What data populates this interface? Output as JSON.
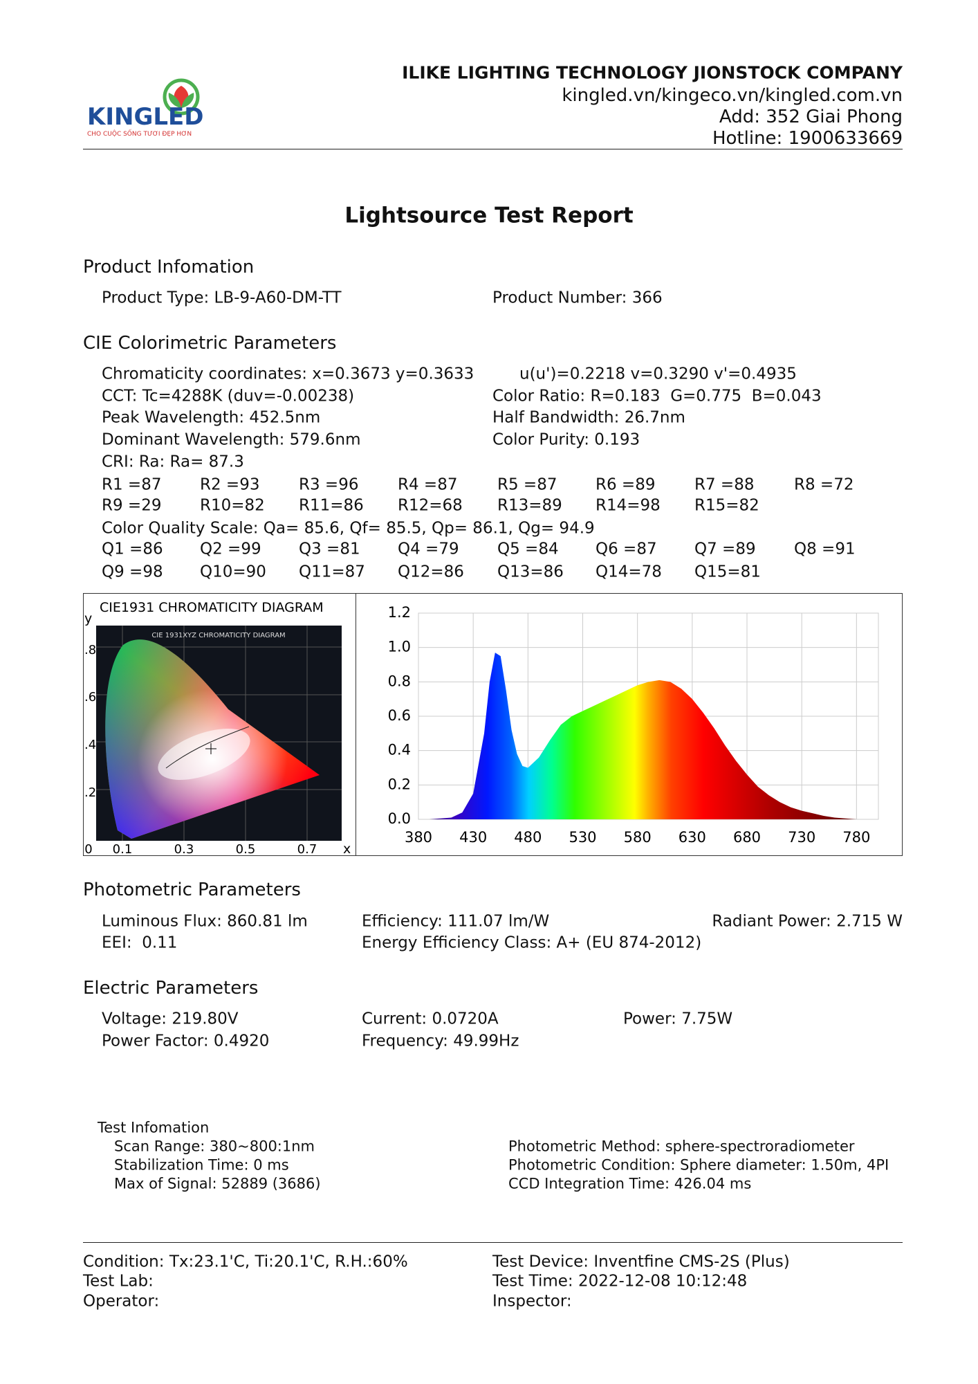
{
  "header": {
    "logo": "KINGLED",
    "slogan": "CHO CUỘC SỐNG TƯƠI ĐẸP HƠN",
    "company": "ILIKE LIGHTING TECHNOLOGY JIONSTOCK COMPANY",
    "website": "kingled.vn/kingeco.vn/kingled.com.vn",
    "address": "Add: 352 Giai Phong",
    "hotline": "Hotline: 1900633669"
  },
  "title": "Lightsource Test Report",
  "product": {
    "heading": "Product Infomation",
    "type": "Product Type: LB-9-A60-DM-TT",
    "number": "Product Number: 366"
  },
  "cie": {
    "heading": "CIE Colorimetric Parameters",
    "chromaticity": "Chromaticity coordinates: x=0.3673 y=0.3633",
    "uv": "u(u')=0.2218 v=0.3290 v'=0.4935",
    "cct": "CCT: Tc=4288K (duv=-0.00238)",
    "color_ratio": "Color Ratio: R=0.183  G=0.775  B=0.043",
    "peak": "Peak Wavelength: 452.5nm",
    "half_bandwidth": "Half Bandwidth: 26.7nm",
    "dominant": "Dominant Wavelength: 579.6nm",
    "purity": "Color Purity: 0.193",
    "cri": "CRI: Ra: Ra= 87.3",
    "r_values": [
      [
        "R1 =87",
        "R2 =93",
        "R3 =96",
        "R4 =87",
        "R5 =87",
        "R6 =89",
        "R7 =88",
        "R8 =72"
      ],
      [
        "R9 =29",
        "R10=82",
        "R11=86",
        "R12=68",
        "R13=89",
        "R14=98",
        "R15=82"
      ]
    ],
    "cqs": "Color Quality Scale: Qa= 85.6, Qf= 85.5, Qp= 86.1, Qg= 94.9",
    "q_values": [
      [
        "Q1 =86",
        "Q2 =99",
        "Q3 =81",
        "Q4 =79",
        "Q5 =84",
        "Q6 =87",
        "Q7 =89",
        "Q8 =91"
      ],
      [
        "Q9 =98",
        "Q10=90",
        "Q11=87",
        "Q12=86",
        "Q13=86",
        "Q14=78",
        "Q15=81"
      ]
    ]
  },
  "cie_diagram": {
    "title": "CIE1931 CHROMATICITY DIAGRAM",
    "inner_title": "CIE 1931XYZ CHROMATICITY DIAGRAM",
    "y_label": "y",
    "x_label": "x",
    "yticks": [
      ".8",
      ".6",
      ".4",
      ".2"
    ],
    "xticks": [
      "0",
      "0.1",
      "0.3",
      "0.5",
      "0.7"
    ]
  },
  "chart_data": {
    "type": "area",
    "x": [
      380,
      390,
      400,
      410,
      420,
      430,
      440,
      445,
      450,
      455,
      460,
      465,
      470,
      475,
      480,
      490,
      500,
      510,
      520,
      530,
      540,
      550,
      560,
      570,
      580,
      590,
      600,
      610,
      620,
      630,
      640,
      650,
      660,
      670,
      680,
      690,
      700,
      710,
      720,
      730,
      740,
      750,
      760,
      770,
      780
    ],
    "values": [
      0,
      0,
      0.005,
      0.01,
      0.04,
      0.15,
      0.5,
      0.8,
      0.97,
      0.95,
      0.75,
      0.52,
      0.38,
      0.31,
      0.3,
      0.36,
      0.46,
      0.55,
      0.6,
      0.63,
      0.66,
      0.69,
      0.72,
      0.75,
      0.78,
      0.8,
      0.81,
      0.8,
      0.76,
      0.7,
      0.62,
      0.53,
      0.43,
      0.34,
      0.26,
      0.19,
      0.14,
      0.1,
      0.07,
      0.05,
      0.035,
      0.02,
      0.01,
      0.005,
      0
    ],
    "xlim": [
      380,
      800
    ],
    "ylim": [
      0,
      1.2
    ],
    "xticks": [
      380,
      430,
      480,
      530,
      580,
      630,
      680,
      730,
      780
    ],
    "yticks": [
      {
        "value": 0,
        "label": "0.0"
      },
      0.2,
      0.4,
      0.6,
      0.8,
      {
        "value": 1,
        "label": "1.0"
      },
      1.2
    ],
    "grid": true
  },
  "photometric": {
    "heading": "Photometric Parameters",
    "flux": "Luminous Flux: 860.81 lm",
    "efficiency": "Efficiency: 111.07 lm/W",
    "radiant": "Radiant Power: 2.715 W",
    "eei": "EEI:  0.11",
    "eec": "Energy Efficiency Class: A+ (EU 874-2012)"
  },
  "electric": {
    "heading": "Electric Parameters",
    "voltage": "Voltage: 219.80V",
    "current": "Current: 0.0720A",
    "power": "Power: 7.75W",
    "power_factor": "Power Factor: 0.4920",
    "frequency": "Frequency: 49.99Hz"
  },
  "test": {
    "heading": "Test Infomation",
    "scan": "Scan Range: 380~800:1nm",
    "stabilization": "Stabilization Time: 0 ms",
    "max_signal": "Max of Signal: 52889 (3686)",
    "method": "Photometric Method: sphere-spectroradiometer",
    "condition": "Photometric Condition: Sphere diameter: 1.50m, 4PI",
    "ccd": "CCD Integration Time: 426.04 ms"
  },
  "footer": {
    "condition": "Condition: Tx:23.1'C, Ti:20.1'C, R.H.:60%",
    "device": "Test Device: Inventfine CMS-2S (Plus)",
    "lab": "Test Lab:",
    "time": "Test Time: 2022-12-08 10:12:48",
    "operator": "Operator:",
    "inspector": "Inspector:"
  }
}
